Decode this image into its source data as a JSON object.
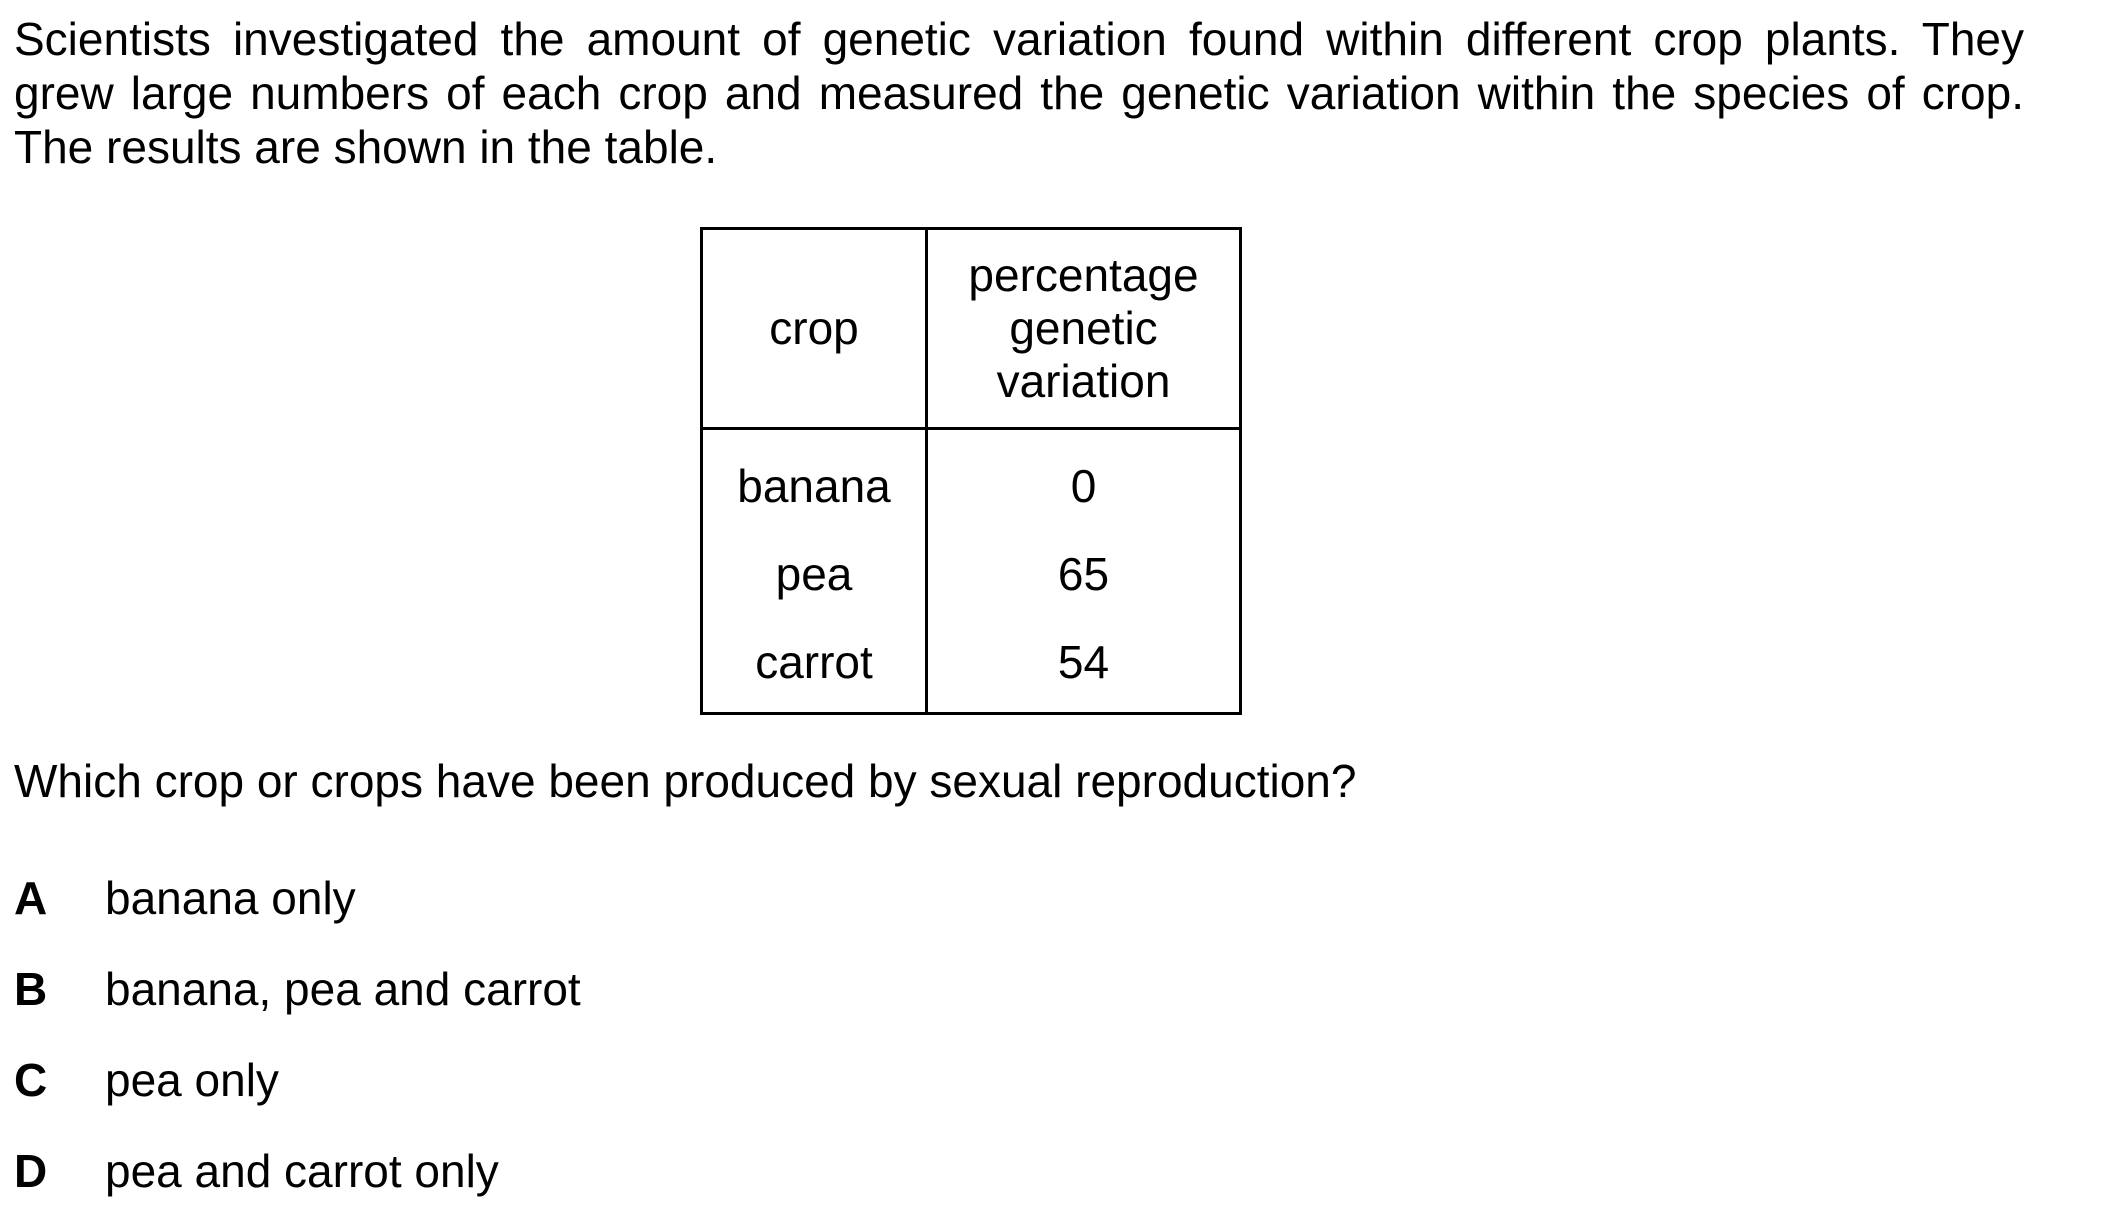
{
  "intro": {
    "lines": [
      "Scientists investigated the amount of genetic variation found within different crop plants. They",
      "grew large numbers of each crop and measured the genetic variation within the species of crop.",
      "The results are shown in the table."
    ]
  },
  "table": {
    "headers": {
      "crop": "crop",
      "variation_lines": [
        "percentage",
        "genetic",
        "variation"
      ]
    },
    "rows": [
      {
        "crop": "banana",
        "variation": "0"
      },
      {
        "crop": "pea",
        "variation": "65"
      },
      {
        "crop": "carrot",
        "variation": "54"
      }
    ]
  },
  "question": "Which crop or crops have been produced by sexual reproduction?",
  "options": [
    {
      "letter": "A",
      "text": "banana only"
    },
    {
      "letter": "B",
      "text": "banana, pea and carrot"
    },
    {
      "letter": "C",
      "text": "pea only"
    },
    {
      "letter": "D",
      "text": "pea and carrot only"
    }
  ]
}
